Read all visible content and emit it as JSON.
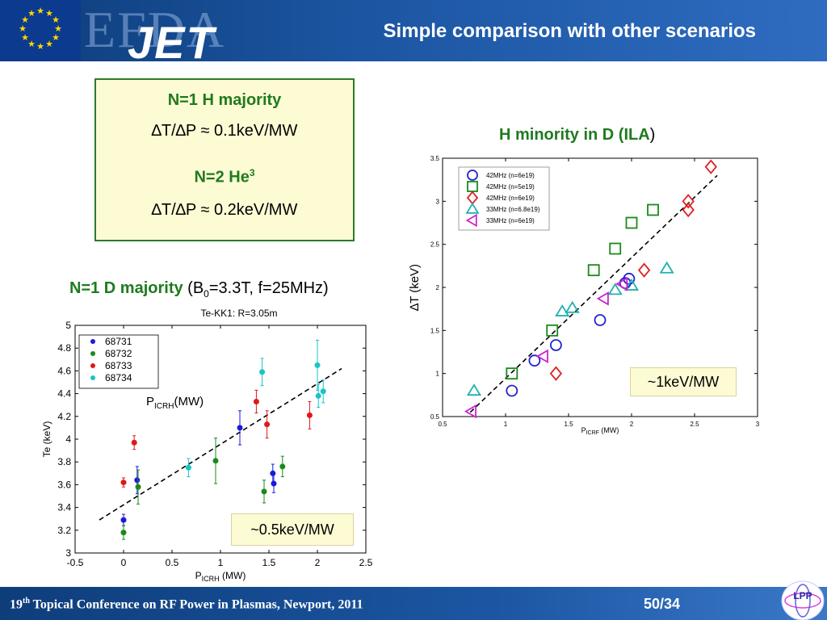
{
  "header": {
    "title": "Simple comparison with other scenarios",
    "logo_text": "EFDA",
    "logo_text2": "JET",
    "colors": {
      "bar": "#1c56a3",
      "text": "#ffffff"
    }
  },
  "box_h_majority": {
    "line1": "N=1 H majority",
    "line2": "∆T/∆P ≈ 0.1keV/MW",
    "line3_base": "N=2 He",
    "line3_sup": "3",
    "line4": "∆T/∆P ≈ 0.2keV/MW"
  },
  "label_d_majority": {
    "bold": "N=1 D majority",
    "rest_open": " (B",
    "rest_sub": "0",
    "rest_close": "=3.3T, f=25MHz)"
  },
  "label_h_minority": {
    "bold": "H minority in D (ILA",
    "close": ")"
  },
  "callout_left": "~0.5keV/MW",
  "callout_right": "~1keV/MW",
  "pich_label": {
    "p": "P",
    "sub": "ICRH",
    "unit": "(MW)"
  },
  "footer": {
    "sup": "th",
    "conf_num": "19",
    "conf_rest": " Topical Conference on RF Power in Plasmas, Newport, 2011",
    "page": "50/34",
    "logo": "LPP"
  },
  "chart_data": [
    {
      "type": "scatter",
      "title": "Te-KK1: R=3.05m",
      "xlabel_main": "P",
      "xlabel_sub": "ICRH",
      "xlabel_unit": " (MW)",
      "ylabel": "Te (keV)",
      "xlim": [
        -0.5,
        2.5
      ],
      "ylim": [
        3,
        5
      ],
      "xticks": [
        -0.5,
        0,
        0.5,
        1,
        1.5,
        2,
        2.5
      ],
      "xtick_labels": [
        "-0.5",
        "0",
        "0.5",
        "1",
        "1.5",
        "2",
        "2.5"
      ],
      "yticks": [
        3,
        3.2,
        3.4,
        3.6,
        3.8,
        4,
        4.2,
        4.4,
        4.6,
        4.8,
        5
      ],
      "ytick_labels": [
        "3",
        "3.2",
        "3.4",
        "3.6",
        "3.8",
        "4",
        "4.2",
        "4.4",
        "4.6",
        "4.8",
        "5"
      ],
      "legend_position": "top-left",
      "series": [
        {
          "name": "68731",
          "color": "#1a1adc",
          "points": [
            {
              "x": 0,
              "y": 3.29,
              "err": 0.05
            },
            {
              "x": 0.14,
              "y": 3.64,
              "err": 0.12
            },
            {
              "x": 1.2,
              "y": 4.1,
              "err": 0.15
            },
            {
              "x": 1.54,
              "y": 3.7,
              "err": 0.08
            },
            {
              "x": 1.55,
              "y": 3.61,
              "err": 0.08
            }
          ]
        },
        {
          "name": "68732",
          "color": "#1a8a1a",
          "points": [
            {
              "x": 0,
              "y": 3.18,
              "err": 0.06
            },
            {
              "x": 0.15,
              "y": 3.58,
              "err": 0.15
            },
            {
              "x": 0.95,
              "y": 3.81,
              "err": 0.2
            },
            {
              "x": 1.45,
              "y": 3.54,
              "err": 0.1
            },
            {
              "x": 1.64,
              "y": 3.76,
              "err": 0.09
            }
          ]
        },
        {
          "name": "68733",
          "color": "#e01818",
          "points": [
            {
              "x": 0,
              "y": 3.62,
              "err": 0.04
            },
            {
              "x": 0.11,
              "y": 3.97,
              "err": 0.06
            },
            {
              "x": 1.37,
              "y": 4.33,
              "err": 0.1
            },
            {
              "x": 1.48,
              "y": 4.13,
              "err": 0.12
            },
            {
              "x": 1.92,
              "y": 4.21,
              "err": 0.12
            }
          ]
        },
        {
          "name": "68734",
          "color": "#18c4c4",
          "points": [
            {
              "x": 0.67,
              "y": 3.75,
              "err": 0.08
            },
            {
              "x": 1.43,
              "y": 4.59,
              "err": 0.12
            },
            {
              "x": 2.0,
              "y": 4.65,
              "err": 0.22
            },
            {
              "x": 2.01,
              "y": 4.38,
              "err": 0.1
            },
            {
              "x": 2.06,
              "y": 4.42,
              "err": 0.1
            }
          ]
        }
      ],
      "trend": {
        "x": [
          -0.25,
          2.25
        ],
        "y": [
          3.29,
          4.62
        ]
      }
    },
    {
      "type": "scatter",
      "xlabel_main": "P",
      "xlabel_sub": "ICRF",
      "xlabel_unit": " (MW)",
      "ylabel": "∆T (keV)",
      "xlim": [
        0.5,
        3
      ],
      "ylim": [
        0.5,
        3.5
      ],
      "xticks": [
        0.5,
        1,
        1.5,
        2,
        2.5,
        3
      ],
      "xtick_labels": [
        "0.5",
        "1",
        "1.5",
        "2",
        "2.5",
        "3"
      ],
      "yticks": [
        0.5,
        1,
        1.5,
        2,
        2.5,
        3,
        3.5
      ],
      "ytick_labels": [
        "0.5",
        "1",
        "1.5",
        "2",
        "2.5",
        "3",
        "3.5"
      ],
      "legend_position": "top-left",
      "series": [
        {
          "name": "42MHz (n=6e19)",
          "marker": "circle",
          "color": "#2222cc",
          "points": [
            {
              "x": 1.05,
              "y": 0.8
            },
            {
              "x": 1.23,
              "y": 1.15
            },
            {
              "x": 1.4,
              "y": 1.33
            },
            {
              "x": 1.75,
              "y": 1.62
            },
            {
              "x": 1.95,
              "y": 2.05
            },
            {
              "x": 1.98,
              "y": 2.1
            }
          ]
        },
        {
          "name": "42MHz (n=5e19)",
          "marker": "square",
          "color": "#1a8a1a",
          "points": [
            {
              "x": 1.05,
              "y": 1.0
            },
            {
              "x": 1.37,
              "y": 1.5
            },
            {
              "x": 1.7,
              "y": 2.2
            },
            {
              "x": 1.87,
              "y": 2.45
            },
            {
              "x": 2.0,
              "y": 2.75
            },
            {
              "x": 2.17,
              "y": 2.9
            }
          ]
        },
        {
          "name": "42MHz (n=6e19)",
          "marker": "diamond",
          "color": "#dd2222",
          "points": [
            {
              "x": 1.4,
              "y": 1.0
            },
            {
              "x": 2.1,
              "y": 2.2
            },
            {
              "x": 2.45,
              "y": 2.9
            },
            {
              "x": 2.45,
              "y": 3.0
            },
            {
              "x": 2.63,
              "y": 3.4
            }
          ]
        },
        {
          "name": "33MHz (n=6.8e19)",
          "marker": "triangle",
          "color": "#22b0b0",
          "points": [
            {
              "x": 0.75,
              "y": 0.8
            },
            {
              "x": 1.45,
              "y": 1.72
            },
            {
              "x": 1.53,
              "y": 1.76
            },
            {
              "x": 1.87,
              "y": 1.97
            },
            {
              "x": 2.0,
              "y": 2.02
            },
            {
              "x": 2.28,
              "y": 2.22
            }
          ]
        },
        {
          "name": "33MHz (n=6e19)",
          "marker": "triangle-left",
          "color": "#cc22cc",
          "points": [
            {
              "x": 0.73,
              "y": 0.56
            },
            {
              "x": 1.3,
              "y": 1.2
            },
            {
              "x": 1.78,
              "y": 1.87
            },
            {
              "x": 1.93,
              "y": 2.04
            }
          ]
        }
      ],
      "trend": {
        "x": [
          0.72,
          2.68
        ],
        "y": [
          0.55,
          3.3
        ]
      }
    }
  ]
}
